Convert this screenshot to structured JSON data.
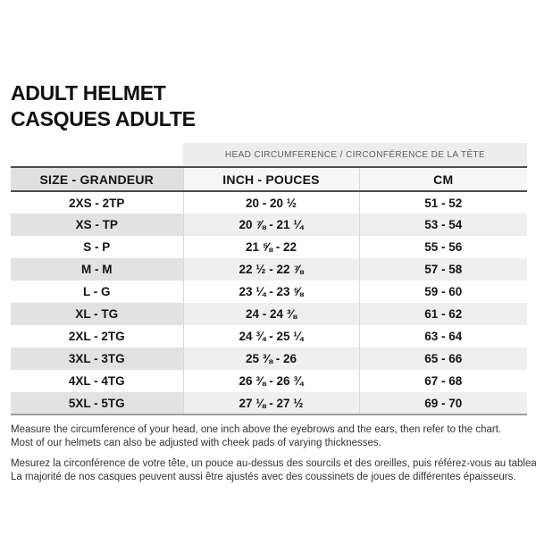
{
  "page": {
    "title_line1": "ADULT HELMET",
    "title_line2": "CASQUES ADULTE"
  },
  "table": {
    "band_header": "HEAD CIRCUMFERENCE / CIRCONFÉRENCE DE LA TÊTE",
    "columns": {
      "size": "SIZE - GRANDEUR",
      "inch": "INCH - POUCES",
      "cm": "CM"
    },
    "rows": [
      {
        "size": "2XS - 2TP",
        "inch": "20 - 20 ½",
        "cm": "51 - 52"
      },
      {
        "size": "XS - TP",
        "inch": "20 ⅞ - 21 ¼",
        "cm": "53 - 54"
      },
      {
        "size": "S - P",
        "inch": "21 ⅝ - 22",
        "cm": "55 - 56"
      },
      {
        "size": "M - M",
        "inch": "22 ½ - 22 ⅞",
        "cm": "57 - 58"
      },
      {
        "size": "L - G",
        "inch": "23 ¼ - 23 ⅝",
        "cm": "59 - 60"
      },
      {
        "size": "XL - TG",
        "inch": "24 - 24 ⅜",
        "cm": "61 - 62"
      },
      {
        "size": "2XL - 2TG",
        "inch": "24 ¾ - 25 ¼",
        "cm": "63 - 64"
      },
      {
        "size": "3XL - 3TG",
        "inch": "25 ⅜ - 26",
        "cm": "65 - 66"
      },
      {
        "size": "4XL - 4TG",
        "inch": "26 ⅜ - 26 ¾",
        "cm": "67 - 68"
      },
      {
        "size": "5XL - 5TG",
        "inch": "27 ⅛ - 27 ½",
        "cm": "69 - 70"
      }
    ]
  },
  "notes": {
    "en_line1": "Measure the circumference of your head, one inch above the eyebrows and the ears, then refer to the chart.",
    "en_line2": "Most of our helmets can also be adjusted with cheek pads of varying thicknesses.",
    "fr_line1": "Mesurez la circonférence de votre tête, un pouce au-dessus des sourcils et des oreilles, puis référez-vous au tableau.",
    "fr_line2": "La majorité de nos casques peuvent aussi être ajustés avec des coussinets de joues de différentes épaisseurs."
  },
  "colors": {
    "stripe_light": "#efefef",
    "stripe_dark": "#e2e2e2",
    "band_bg": "#ededed",
    "header_size_bg": "#e0e0e0",
    "border_dark": "#4c4c4c",
    "border_bottom": "#9e9e9e",
    "text_primary": "#141414",
    "text_notes": "#333333"
  }
}
